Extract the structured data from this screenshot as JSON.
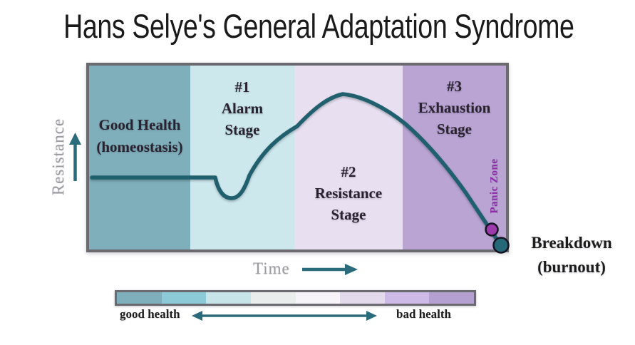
{
  "title": "Hans Selye's General Adaptation Syndrome",
  "colors": {
    "title_text": "#1a1a1a",
    "curve": "#20606e",
    "chart_border": "#6b6a70",
    "arrow": "#2a6b7c",
    "panic_dot_fill": "#9c3aac",
    "breakdown_dot_fill": "#266877",
    "dot_outline": "#13141f",
    "panic_zone_text": "#8e2da8",
    "axis_label_text": "#9b9ba1",
    "stage_label_text": "#29222f",
    "legend_label_text": "#1d1d1d"
  },
  "chart": {
    "stages": [
      {
        "label_lines": [
          "Good Health",
          "(homeostasis)",
          ""
        ],
        "color": "#7fafbb"
      },
      {
        "label_lines": [
          "#1",
          "Alarm",
          "Stage"
        ],
        "color": "#cce8ed"
      },
      {
        "label_lines": [
          "#2",
          "Resistance",
          "Stage"
        ],
        "color": "#e8e0f1"
      },
      {
        "label_lines": [
          "#3",
          "Exhaustion",
          "Stage"
        ],
        "color": "#b9a4d3"
      }
    ],
    "panic_zone_label": "Panic Zone",
    "breakdown_label_lines": [
      "Breakdown",
      "(burnout)"
    ]
  },
  "axes": {
    "y_label": "Resistance",
    "x_label": "Time"
  },
  "legend": {
    "left_label": "good health",
    "right_label": "bad health",
    "segment_colors": [
      "#7fafbb",
      "#8dcad8",
      "#c7e4e9",
      "#e9eeec",
      "#f6f3f9",
      "#e3dbec",
      "#cebae7",
      "#b4a1d1"
    ]
  }
}
